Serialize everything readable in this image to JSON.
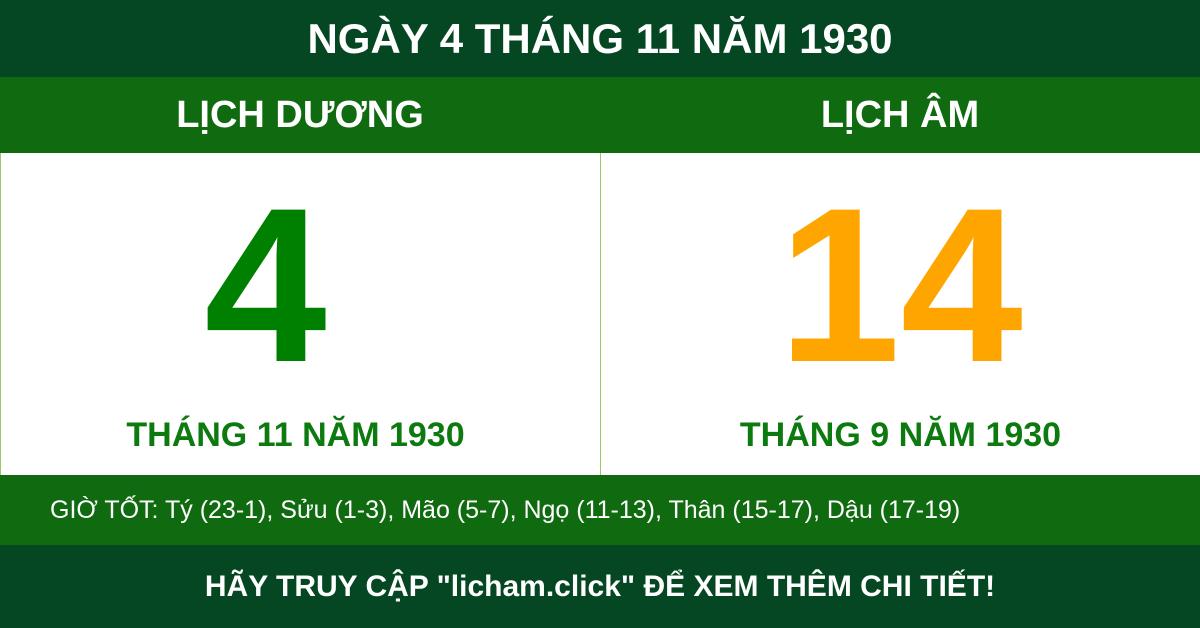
{
  "title": "NGÀY 4 THÁNG 11 NĂM 1930",
  "solar": {
    "label": "LỊCH DƯƠNG",
    "day": "4",
    "month_year": "THÁNG 11 NĂM 1930"
  },
  "lunar": {
    "label": "LỊCH ÂM",
    "day": "14",
    "month_year": "THÁNG 9 NĂM 1930"
  },
  "good_hours": "GIỜ TỐT: Tý (23-1), Sửu (1-3), Mão (5-7), Ngọ (11-13), Thân (15-17), Dậu (17-19)",
  "footer": "HÃY TRUY CẬP \"licham.click\" ĐỂ XEM THÊM CHI TIẾT!",
  "colors": {
    "dark_green": "#044722",
    "green": "#106b10",
    "solar_day": "#008000",
    "lunar_day": "#ffa500"
  }
}
